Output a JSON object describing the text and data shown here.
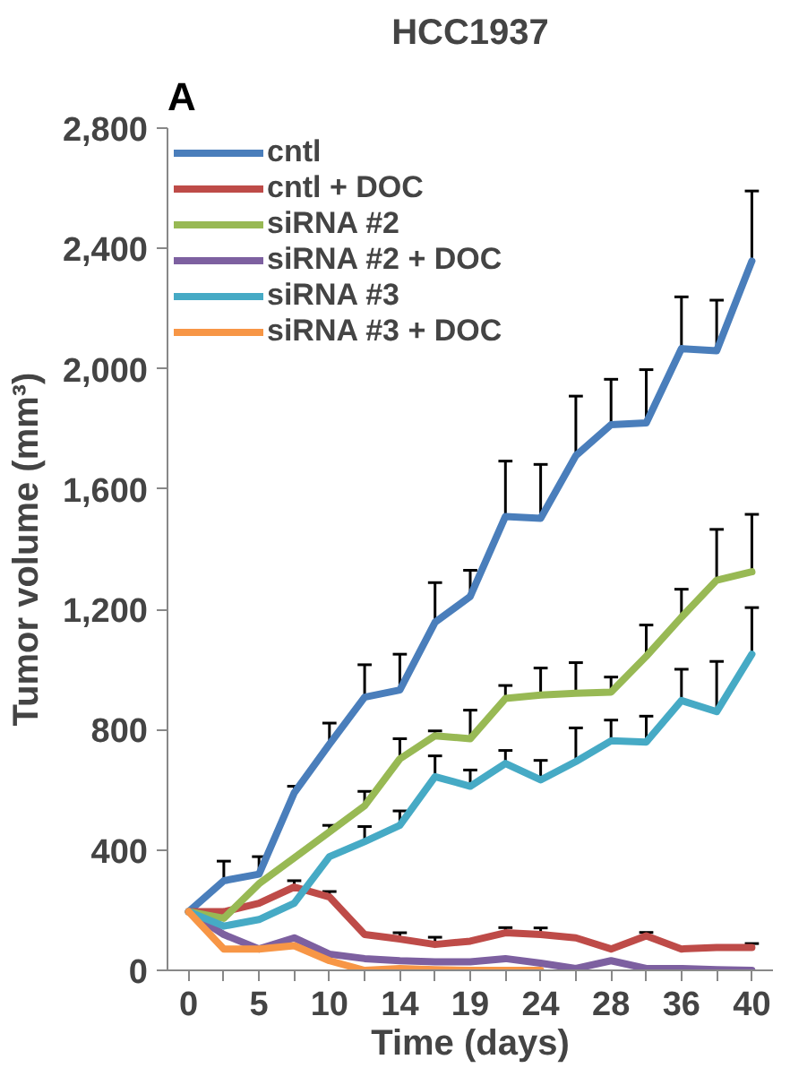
{
  "chart_data": {
    "type": "line",
    "title": "HCC1937",
    "annotations": [
      "A"
    ],
    "xlabel": "Time (days)",
    "ylabel": "Tumor volume (mm³)",
    "categories": [
      "0",
      null,
      "5",
      null,
      "10",
      null,
      "14",
      null,
      "19",
      null,
      "24",
      null,
      "28",
      null,
      "36",
      null,
      "40"
    ],
    "ylim": [
      0,
      2800
    ],
    "yticks": [
      {
        "value": 0,
        "label": "0"
      },
      {
        "value": 400,
        "label": "400"
      },
      {
        "value": 800,
        "label": "800"
      },
      {
        "value": 1200,
        "label": "1,200"
      },
      {
        "value": 1600,
        "label": "1,600"
      },
      {
        "value": 2000,
        "label": "2,000"
      },
      {
        "value": 2400,
        "label": "2,400"
      },
      {
        "value": 2800,
        "label": "2,800"
      }
    ],
    "grid": false,
    "legend": "top left",
    "marker": "none",
    "line_style": "solid",
    "series": [
      {
        "name": "cntl",
        "color": "#4a7ebb",
        "values": [
          195,
          298,
          320,
          590,
          752,
          908,
          932,
          1157,
          1243,
          1509,
          1503,
          1711,
          1814,
          1820,
          2067,
          2060,
          2358
        ],
        "errors": [
          null,
          [
            298,
            363
          ],
          [
            320,
            378
          ],
          [
            590,
            612
          ],
          [
            752,
            822
          ],
          [
            908,
            1016
          ],
          [
            932,
            1051
          ],
          [
            1157,
            1289
          ],
          [
            1243,
            1330
          ],
          [
            1509,
            1693
          ],
          [
            1503,
            1682
          ],
          [
            1711,
            1909
          ],
          [
            1814,
            1965
          ],
          [
            1820,
            1997
          ],
          [
            2067,
            2239
          ],
          [
            2060,
            2228
          ],
          [
            2358,
            2591
          ]
        ]
      },
      {
        "name": "cntl + DOC",
        "color": "#be4b48",
        "values": [
          195,
          195,
          223,
          277,
          244,
          119,
          104,
          86,
          97,
          125,
          119,
          108,
          71,
          115,
          71,
          76,
          76
        ],
        "errors": [
          null,
          null,
          null,
          [
            277,
            298
          ],
          [
            244,
            262
          ],
          null,
          [
            104,
            125
          ],
          [
            86,
            110
          ],
          null,
          [
            125,
            142
          ],
          [
            119,
            141
          ],
          null,
          null,
          [
            115,
            126
          ],
          null,
          null,
          [
            76,
            89
          ]
        ]
      },
      {
        "name": "siRNA #2",
        "color": "#98b954",
        "values": [
          195,
          173,
          288,
          374,
          460,
          547,
          703,
          780,
          770,
          904,
          915,
          921,
          925,
          1044,
          1174,
          1297,
          1325
        ],
        "errors": [
          null,
          null,
          null,
          null,
          [
            460,
            482
          ],
          [
            547,
            595
          ],
          [
            703,
            770
          ],
          [
            780,
            796
          ],
          [
            770,
            865
          ],
          [
            904,
            947
          ],
          [
            915,
            1005
          ],
          [
            921,
            1023
          ],
          [
            925,
            975
          ],
          [
            1044,
            1148
          ],
          [
            1174,
            1267
          ],
          [
            1297,
            1466
          ],
          [
            1325,
            1516
          ]
        ]
      },
      {
        "name": "siRNA #2 + DOC",
        "color": "#7d60a0",
        "values": [
          195,
          119,
          71,
          108,
          54,
          39,
          32,
          28,
          28,
          39,
          24,
          6,
          32,
          6,
          6,
          2,
          0
        ]
      },
      {
        "name": "siRNA #3",
        "color": "#46aac5",
        "values": [
          195,
          147,
          169,
          223,
          378,
          428,
          482,
          644,
          612,
          688,
          633,
          694,
          763,
          759,
          897,
          860,
          1051
        ],
        "errors": [
          null,
          null,
          null,
          null,
          null,
          [
            428,
            478
          ],
          [
            482,
            530
          ],
          [
            644,
            713
          ],
          [
            612,
            666
          ],
          [
            688,
            731
          ],
          [
            633,
            698
          ],
          [
            694,
            806
          ],
          [
            763,
            832
          ],
          [
            759,
            845
          ],
          [
            897,
            1001
          ],
          [
            860,
            1027
          ],
          [
            1051,
            1206
          ]
        ]
      },
      {
        "name": "siRNA #3 + DOC",
        "color": "#f79646",
        "values": [
          195,
          71,
          71,
          82,
          32,
          0,
          6,
          2,
          0,
          0,
          0,
          null,
          null,
          null,
          null,
          null,
          null
        ]
      }
    ]
  }
}
